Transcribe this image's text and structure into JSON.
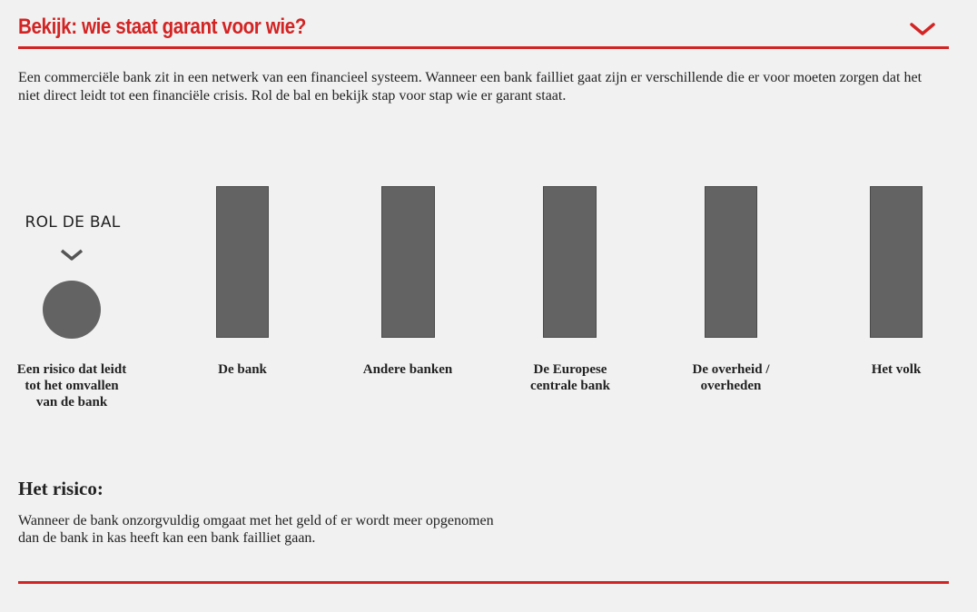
{
  "header": {
    "title": "Bekijk: wie staat garant voor wie?",
    "toggle_icon": "chevron-down-icon",
    "accent_color": "#d32424"
  },
  "intro": "Een commerciële bank zit in een netwerk van een financieel systeem. Wanneer een bank failliet gaat zijn er verschillende die er voor moeten zorgen dat het niet direct leidt tot een financiële crisis. Rol de bal en bekijk stap voor stap wie er garant staat.",
  "ball": {
    "prompt": "ROL DE BAL",
    "hint_icon": "chevron-down-icon",
    "label": "Een risico dat leidt tot het omvallen van de bank"
  },
  "pillars": [
    {
      "label": "De bank"
    },
    {
      "label": "Andere banken"
    },
    {
      "label": "De Europese centrale bank"
    },
    {
      "label": "De overheid / overheden"
    },
    {
      "label": "Het volk"
    }
  ],
  "risk": {
    "heading": "Het risico:",
    "text": "Wanneer de bank onzorgvuldig omgaat met het geld of er wordt meer opgenomen dan de bank in kas heeft kan een bank failliet gaan."
  }
}
